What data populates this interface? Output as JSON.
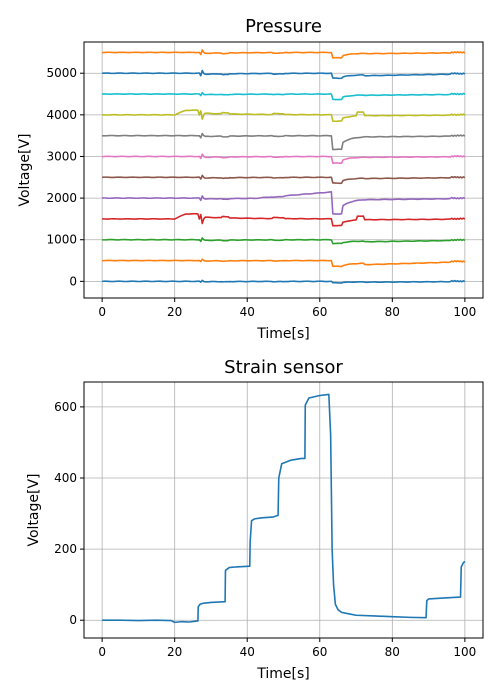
{
  "chart_data": [
    {
      "type": "line",
      "title": "Pressure",
      "xlabel": "Time[s]",
      "ylabel": "Voltage[V]",
      "xlim": [
        -5,
        105
      ],
      "ylim": [
        -400,
        5750
      ],
      "xticks": [
        0,
        20,
        40,
        60,
        80,
        100
      ],
      "yticks": [
        0,
        1000,
        2000,
        3000,
        4000,
        5000
      ],
      "grid": true,
      "series": [
        {
          "color": "#1f77b4",
          "base": 0,
          "shape": "drop",
          "event_amp": -35,
          "pulse_amp": -25,
          "tail": -20
        },
        {
          "color": "#ff7f0e",
          "base": 500,
          "shape": "drop",
          "event_amp": -140,
          "pulse_amp": -30,
          "tail": -100
        },
        {
          "color": "#2ca02c",
          "base": 1000,
          "shape": "drop",
          "event_amp": -90,
          "pulse_amp": -45,
          "tail": -50
        },
        {
          "color": "#d62728",
          "base": 1500,
          "shape": "spike",
          "event_amp": -160,
          "pulse_amp": 120,
          "tail": -20
        },
        {
          "color": "#9467bd",
          "base": 2000,
          "shape": "ramp",
          "event_amp": -380,
          "pulse_amp": -60,
          "tail": -40
        },
        {
          "color": "#8c564b",
          "base": 2500,
          "shape": "drop",
          "event_amp": -140,
          "pulse_amp": -50,
          "tail": -30
        },
        {
          "color": "#e377c2",
          "base": 3000,
          "shape": "drop",
          "event_amp": -160,
          "pulse_amp": -55,
          "tail": -20
        },
        {
          "color": "#7f7f7f",
          "base": 3500,
          "shape": "drop",
          "event_amp": -330,
          "pulse_amp": -55,
          "tail": -30
        },
        {
          "color": "#bcbd22",
          "base": 4000,
          "shape": "spike",
          "event_amp": -150,
          "pulse_amp": 110,
          "tail": -20
        },
        {
          "color": "#17becf",
          "base": 4500,
          "shape": "drop",
          "event_amp": -130,
          "pulse_amp": -40,
          "tail": -30
        },
        {
          "color": "#1f77b4",
          "base": 5000,
          "shape": "drop",
          "event_amp": -120,
          "pulse_amp": -70,
          "tail": -60
        },
        {
          "color": "#ff7f0e",
          "base": 5500,
          "shape": "drop",
          "event_amp": -130,
          "pulse_amp": -60,
          "tail": -30
        }
      ]
    },
    {
      "type": "line",
      "title": "Strain sensor",
      "xlabel": "Time[s]",
      "ylabel": "Voltage[V]",
      "xlim": [
        -5,
        105
      ],
      "ylim": [
        -50,
        670
      ],
      "xticks": [
        0,
        20,
        40,
        60,
        80,
        100
      ],
      "yticks": [
        0,
        200,
        400,
        600
      ],
      "grid": true,
      "series": [
        {
          "color": "#1f77b4",
          "x": [
            0,
            5,
            10,
            15,
            19,
            20,
            22,
            24,
            26.4,
            26.5,
            27,
            28,
            30,
            33.9,
            34,
            35,
            37,
            40.7,
            40.8,
            41.2,
            42,
            44,
            47,
            48.5,
            48.7,
            49.5,
            52,
            55,
            55.9,
            56,
            57,
            60,
            62.5,
            63,
            63.4,
            63.8,
            64.3,
            65,
            66,
            68,
            70,
            75,
            80,
            85,
            89.3,
            89.5,
            90,
            95,
            98.8,
            99,
            99.6,
            100
          ],
          "y": [
            0,
            0,
            -1,
            0,
            -1,
            -6,
            -4,
            -5,
            -2,
            38,
            45,
            48,
            50,
            52,
            140,
            148,
            150,
            152,
            220,
            280,
            285,
            288,
            290,
            295,
            400,
            440,
            450,
            455,
            455,
            605,
            625,
            632,
            635,
            520,
            200,
            100,
            45,
            30,
            22,
            18,
            14,
            12,
            10,
            8,
            7,
            55,
            60,
            63,
            65,
            150,
            162,
            165
          ]
        }
      ]
    }
  ]
}
